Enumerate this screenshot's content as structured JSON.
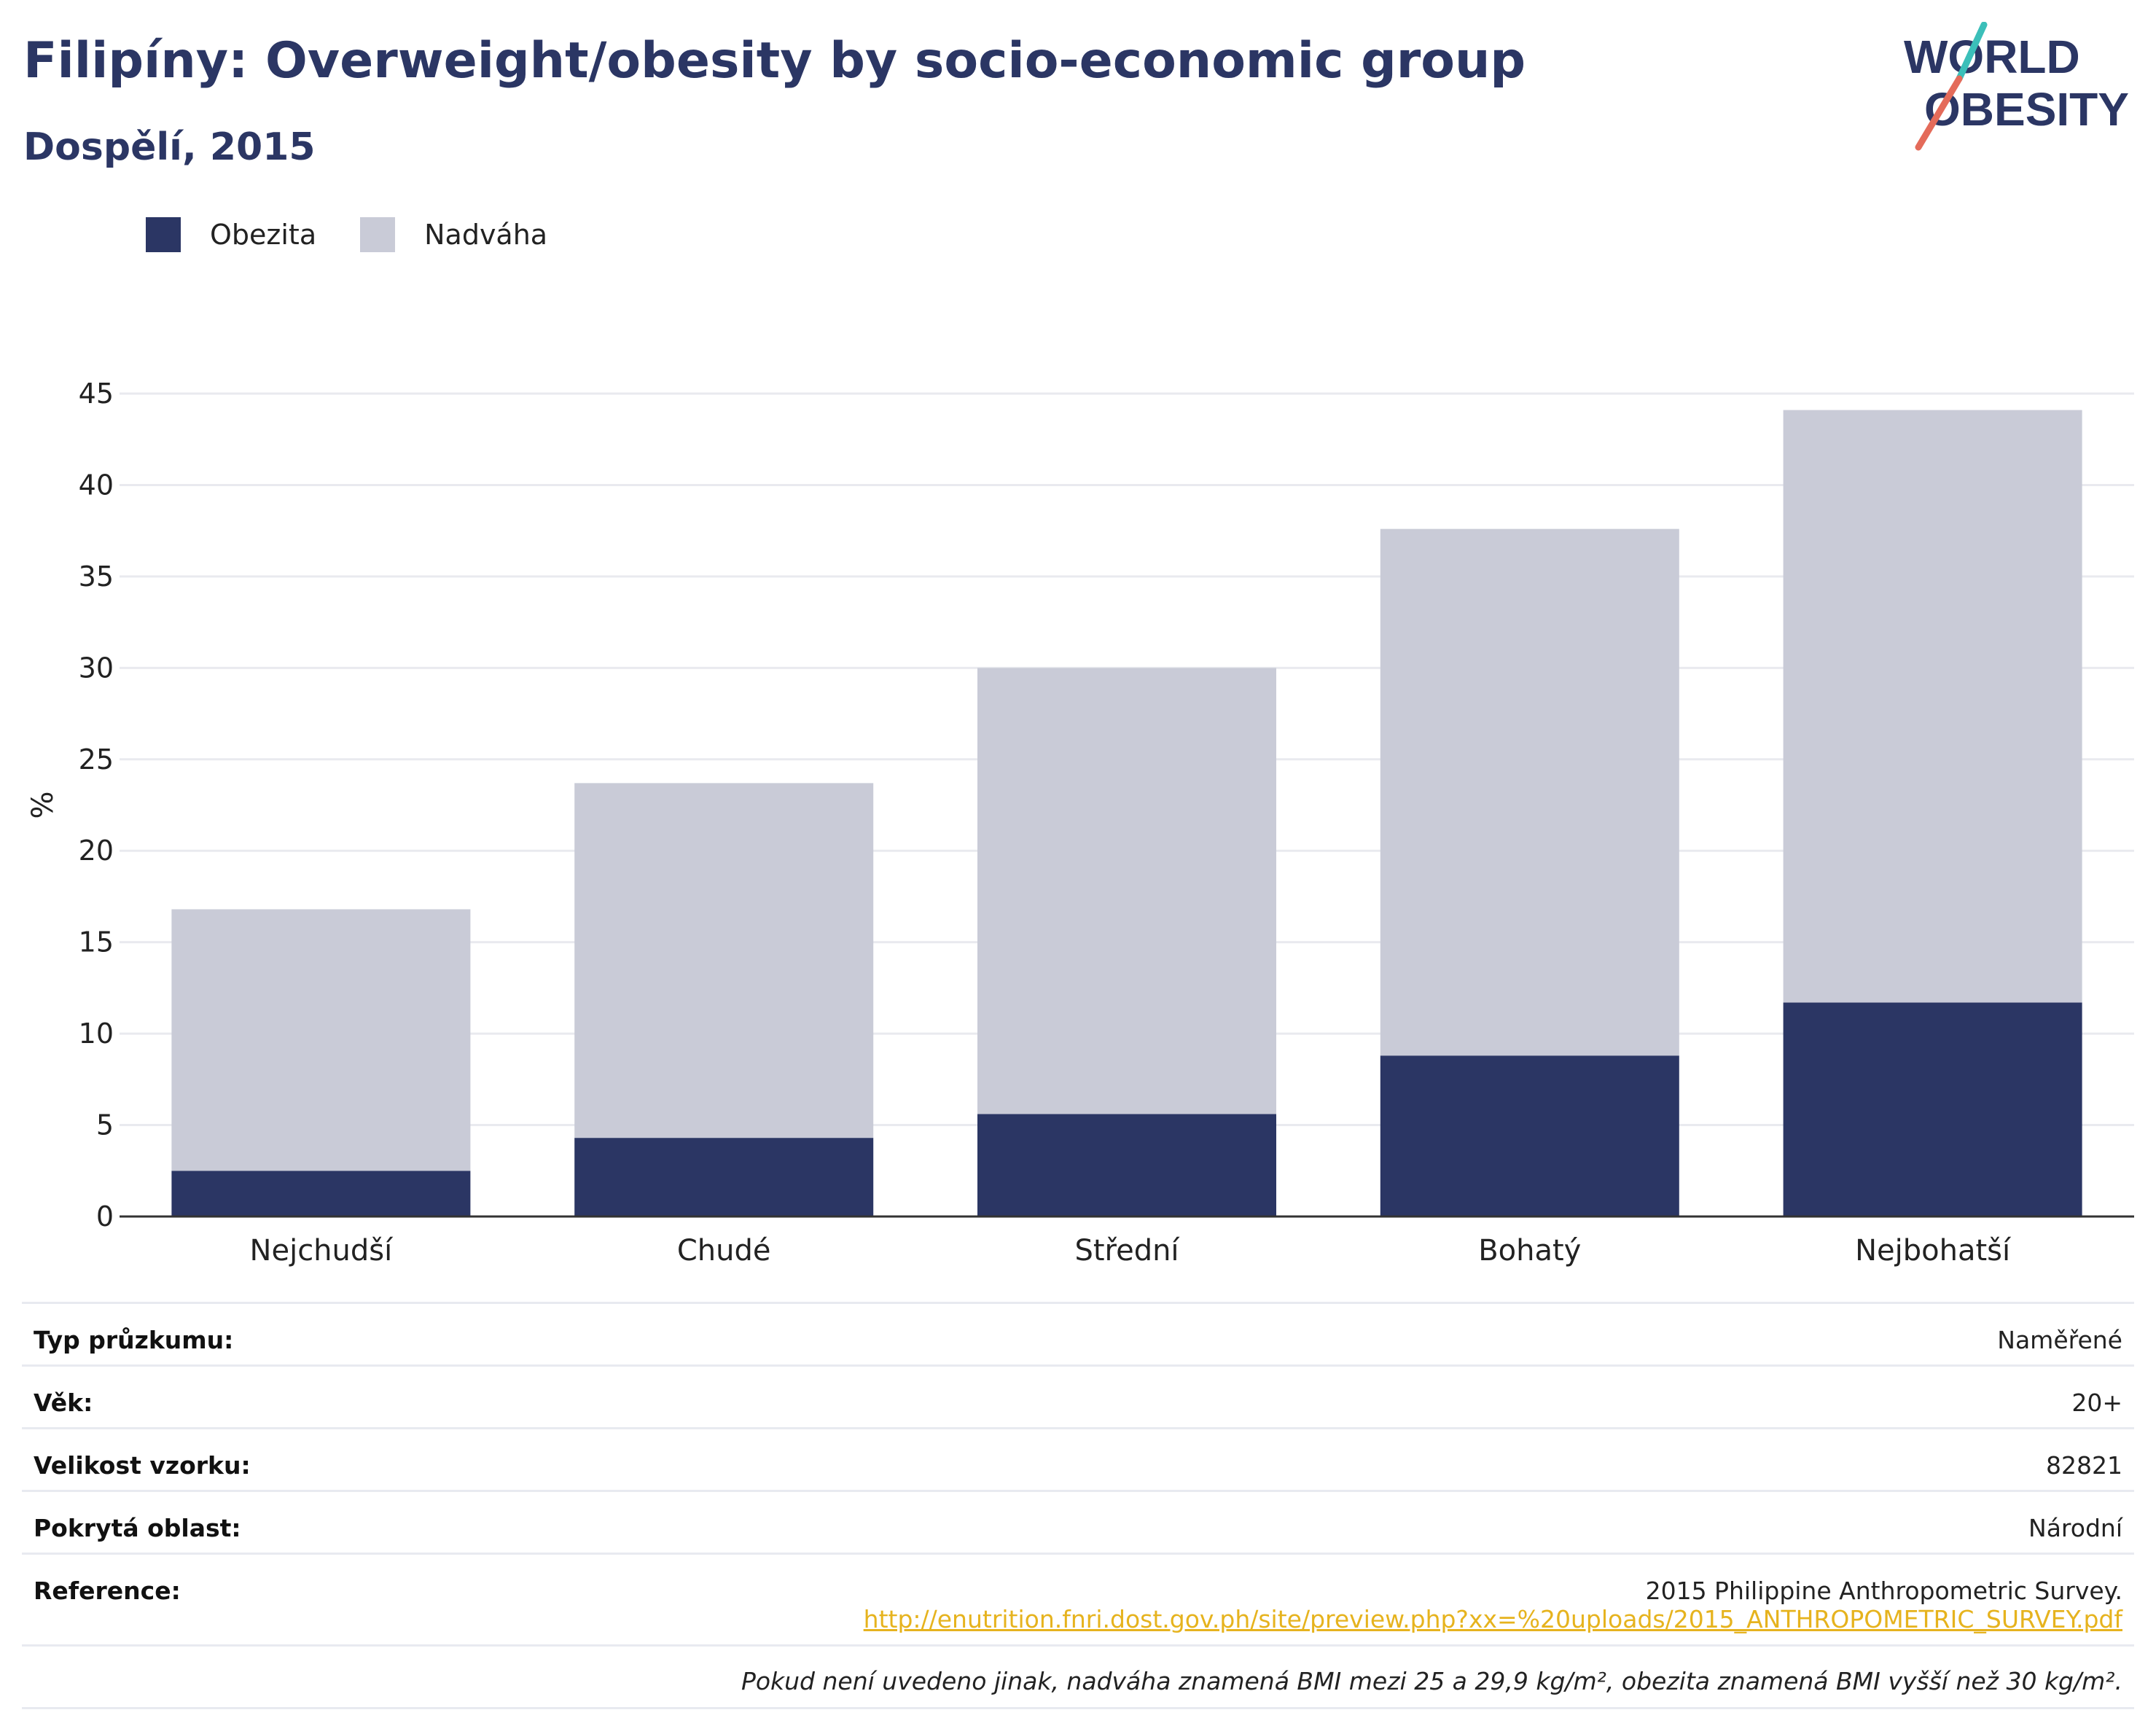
{
  "header": {
    "title": "Filipíny: Overweight/obesity by socio-economic group",
    "subtitle": "Dospělí, 2015"
  },
  "logo": {
    "line1": "WORLD",
    "line2": "OBESITY"
  },
  "colors": {
    "obesity": "#2b3664",
    "overweight": "#c9cbd7",
    "accent_teal": "#3bbfb9",
    "accent_coral": "#e46b5a",
    "link": "#e6b31e"
  },
  "chart_data": {
    "type": "bar",
    "stacked": true,
    "categories": [
      "Nejchudší",
      "Chudé",
      "Střední",
      "Bohatý",
      "Nejbohatší"
    ],
    "series": [
      {
        "name": "Obezita",
        "values": [
          2.5,
          4.3,
          5.6,
          8.8,
          11.7
        ]
      },
      {
        "name": "Nadváha",
        "values": [
          14.3,
          19.4,
          24.4,
          28.8,
          32.4
        ]
      }
    ],
    "ylabel": "%",
    "xlabel": "",
    "ylim": [
      0,
      45
    ],
    "yticks": [
      0,
      5,
      10,
      15,
      20,
      25,
      30,
      35,
      40,
      45
    ],
    "grid": true,
    "legend": "top-left"
  },
  "info": {
    "rows": [
      {
        "label": "Typ průzkumu:",
        "value": "Naměřené"
      },
      {
        "label": "Věk:",
        "value": "20+"
      },
      {
        "label": "Velikost vzorku:",
        "value": "82821"
      },
      {
        "label": "Pokrytá oblast:",
        "value": "Národní"
      }
    ],
    "reference_label": "Reference:",
    "reference_text": "2015 Philippine Anthropometric Survey.",
    "reference_link": "http://enutrition.fnri.dost.gov.ph/site/preview.php?xx=%20uploads/2015_ANTHROPOMETRIC_SURVEY.pdf",
    "note": "Pokud není uvedeno jinak, nadváha znamená BMI mezi 25 a 29,9 kg/m², obezita znamená BMI vyšší než 30 kg/m²."
  }
}
